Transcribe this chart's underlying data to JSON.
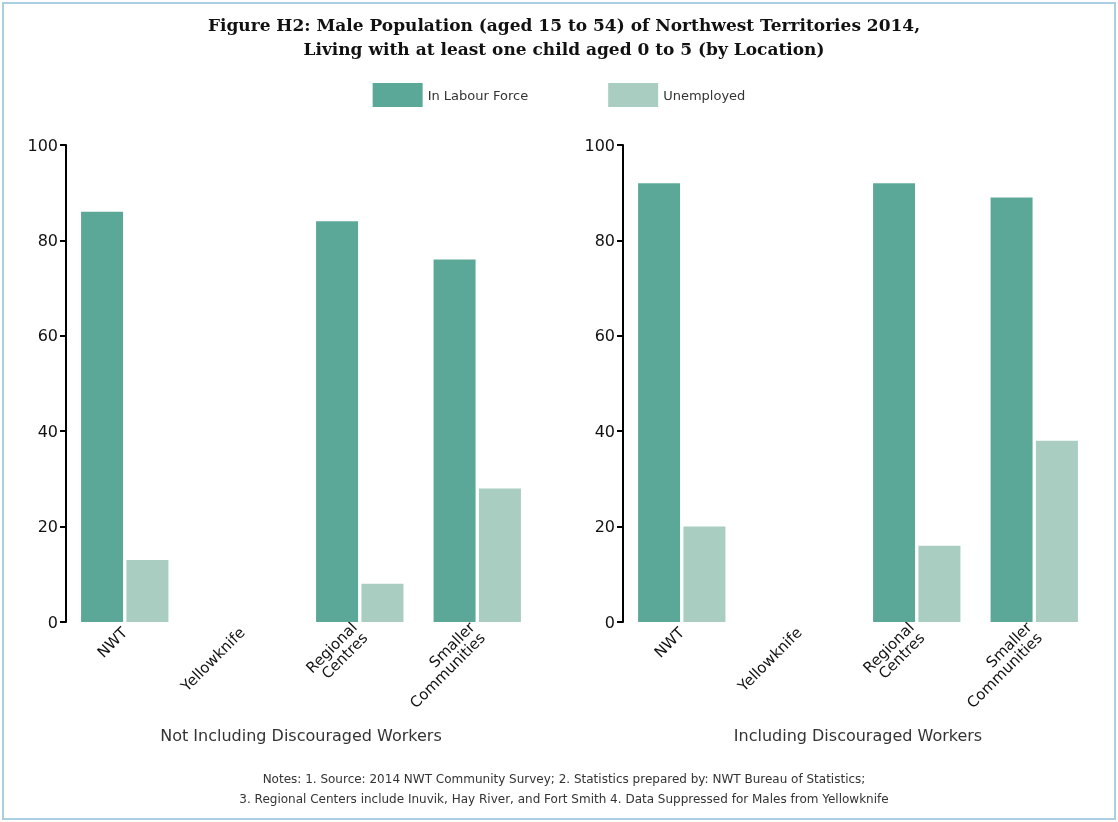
{
  "chart_data": [
    {
      "type": "bar",
      "title": "Figure H2: Male Population (aged 15 to 54) of Northwest Territories 2014,\nLiving with at least one child aged 0 to 5 (by Location)",
      "xlabel": "Not Including Discouraged Workers",
      "categories": [
        "NWT",
        "Yellowknife",
        "Regional Centres",
        "Smaller Communities"
      ],
      "series": [
        {
          "name": "In Labour Force",
          "color": "#5ca898",
          "values": [
            86,
            null,
            84,
            76
          ]
        },
        {
          "name": "Unemployed",
          "color": "#aacdc2",
          "values": [
            13,
            null,
            8,
            28
          ]
        }
      ],
      "ylim": [
        0,
        100
      ],
      "yticks": [
        0,
        20,
        40,
        60,
        80,
        100
      ],
      "grid": false,
      "legend": "top",
      "annotations": [
        "Notes: 1. Source: 2014 NWT Community Survey; 2. Statistics prepared by: NWT Bureau of Statistics;\n3. Regional Centers include Inuvik, Hay River, and Fort Smith 4. Data Suppressed for Males from Yellowknife"
      ]
    },
    {
      "type": "bar",
      "xlabel": "Including Discouraged Workers",
      "categories": [
        "NWT",
        "Yellowknife",
        "Regional Centres",
        "Smaller Communities"
      ],
      "series": [
        {
          "color": "#5ca898",
          "values": [
            92,
            null,
            92,
            89
          ]
        },
        {
          "color": "#aacdc2",
          "values": [
            20,
            null,
            16,
            38
          ]
        }
      ],
      "ylim": [
        0,
        100
      ],
      "yticks": [
        0,
        20,
        40,
        60,
        80,
        100
      ],
      "grid": false
    }
  ]
}
